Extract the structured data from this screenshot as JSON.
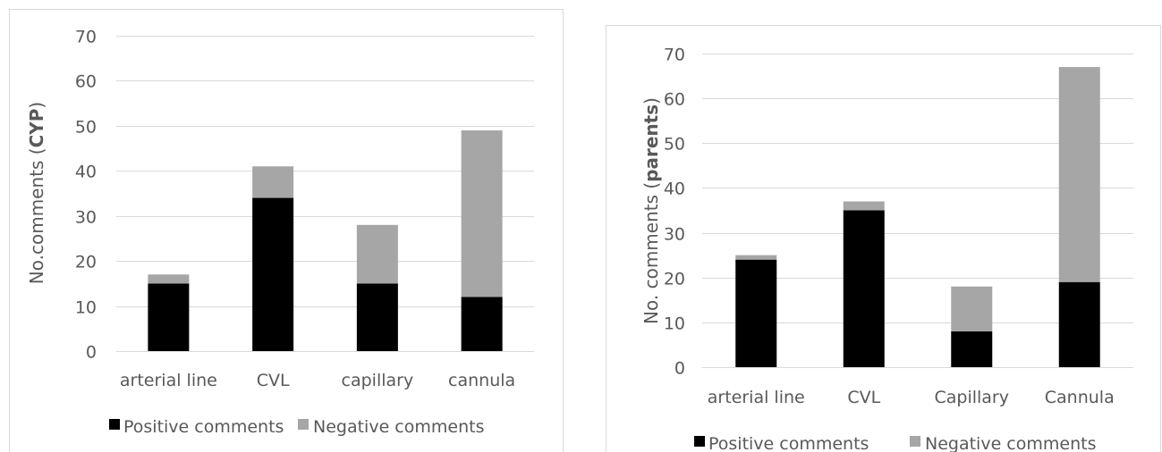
{
  "chart_data": [
    {
      "type": "bar",
      "stacked": true,
      "ylabel": {
        "prefix": "No.comments (",
        "bold": "CYP",
        "suffix": ")"
      },
      "categories": [
        "arterial line",
        "CVL",
        "capillary",
        "cannula"
      ],
      "series": [
        {
          "name": "Positive comments",
          "values": [
            15,
            34,
            15,
            12
          ],
          "color": "#000000"
        },
        {
          "name": "Negative comments",
          "values": [
            2,
            7,
            13,
            37
          ],
          "color": "#a6a6a6"
        }
      ],
      "ylim": [
        0,
        70
      ],
      "yticks": [
        "0",
        "10",
        "20",
        "30",
        "40",
        "50",
        "60",
        "70"
      ],
      "grid": true,
      "legend": "bottom"
    },
    {
      "type": "bar",
      "stacked": true,
      "ylabel": {
        "prefix": "No. comments (",
        "bold": "parents",
        "suffix": ")"
      },
      "categories": [
        "arterial line",
        "CVL",
        "Capillary",
        "Cannula"
      ],
      "series": [
        {
          "name": "Positive comments",
          "values": [
            24,
            35,
            8,
            19
          ],
          "color": "#000000"
        },
        {
          "name": "Negative comments",
          "values": [
            1,
            2,
            10,
            48
          ],
          "color": "#a6a6a6"
        }
      ],
      "ylim": [
        0,
        70
      ],
      "yticks": [
        "0",
        "10",
        "20",
        "30",
        "40",
        "50",
        "60",
        "70"
      ],
      "grid": true,
      "legend": "bottom"
    }
  ]
}
